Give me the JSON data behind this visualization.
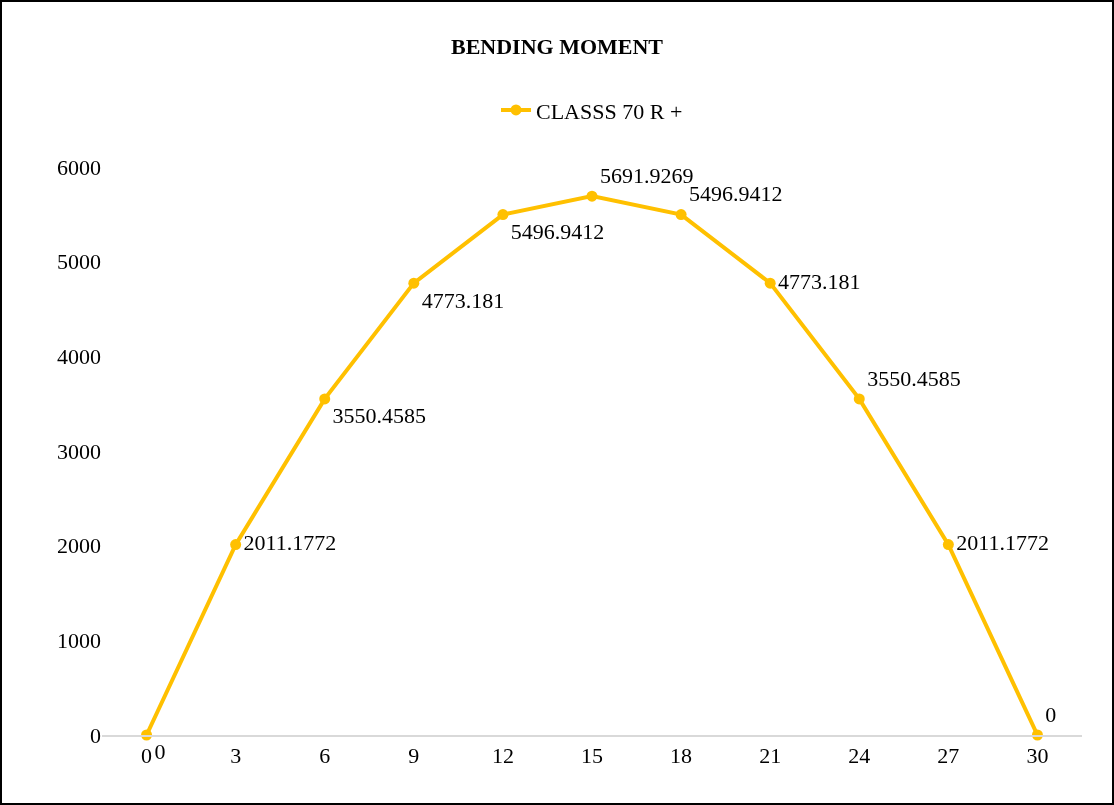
{
  "chart_data": {
    "type": "line",
    "title": "BENDING MOMENT",
    "categories": [
      "0",
      "3",
      "6",
      "9",
      "12",
      "15",
      "18",
      "21",
      "24",
      "27",
      "30"
    ],
    "series": [
      {
        "name": "CLASSS 70 R +",
        "color": "#ffc000",
        "values": [
          0,
          2011.1772,
          3550.4585,
          4773.181,
          5496.9412,
          5691.9269,
          5496.9412,
          4773.181,
          3550.4585,
          2011.1772,
          0
        ]
      }
    ],
    "ylim": [
      0,
      6000
    ],
    "yticks": [
      0,
      1000,
      2000,
      3000,
      4000,
      5000,
      6000
    ],
    "grid": false,
    "legend": "top",
    "marker": "circle",
    "line_style": "solid",
    "data_labels": true
  }
}
